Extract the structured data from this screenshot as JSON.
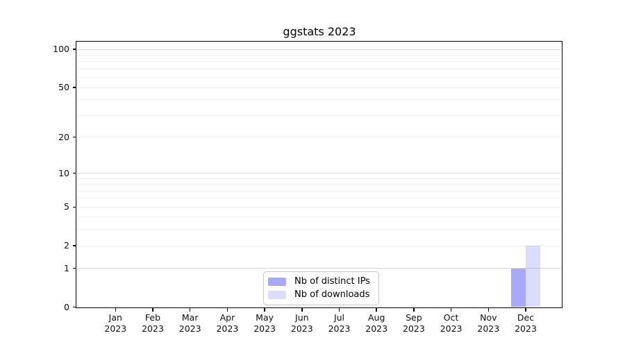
{
  "chart_data": {
    "type": "bar",
    "title": "ggstats 2023",
    "months": [
      "Jan",
      "Feb",
      "Mar",
      "Apr",
      "May",
      "Jun",
      "Jul",
      "Aug",
      "Sep",
      "Oct",
      "Nov",
      "Dec"
    ],
    "year": "2023",
    "series": [
      {
        "name": "Nb of distinct IPs",
        "color": "rgba(80,80,245,0.49)",
        "values": [
          0,
          0,
          0,
          0,
          0,
          0,
          0,
          0,
          0,
          0,
          0,
          1
        ]
      },
      {
        "name": "Nb of downloads",
        "color": "rgba(80,80,245,0.20)",
        "values": [
          0,
          0,
          0,
          0,
          0,
          0,
          0,
          0,
          0,
          0,
          0,
          2
        ]
      }
    ],
    "scale": "log1p",
    "ylim": [
      0,
      115
    ],
    "y_ticks": [
      0,
      1,
      2,
      5,
      10,
      20,
      50,
      100
    ],
    "grid_minor": [
      2,
      3,
      4,
      6,
      7,
      8,
      9,
      5,
      20,
      30,
      40,
      50,
      60,
      70,
      80,
      90
    ],
    "grid_major": [
      1,
      10,
      100
    ],
    "grid_on": true,
    "legend_position": "bottom-center",
    "colors": {
      "axis": "#000000",
      "grid_minor": "#f1f1f1",
      "grid_major": "#d6d6d6",
      "background": "#ffffff",
      "legend_border": "#c8c8c8",
      "text": "#0d0d0d"
    }
  }
}
